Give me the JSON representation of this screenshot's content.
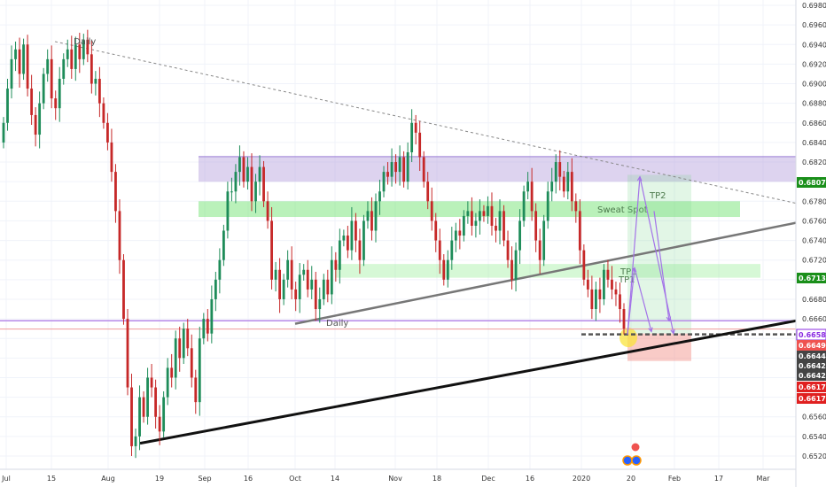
{
  "chart_data": {
    "type": "candlestick",
    "timeframe_label": "Daily",
    "lower_trend_label": "Daily",
    "y_ticks": [
      "0.69800",
      "0.69600",
      "0.69400",
      "0.69200",
      "0.69000",
      "0.68800",
      "0.68600",
      "0.68400",
      "0.68200",
      "0.68000",
      "0.67800",
      "0.67600",
      "0.67400",
      "0.67200",
      "0.67000",
      "0.66800",
      "0.66600",
      "0.66400",
      "0.66200",
      "0.66000",
      "0.65800",
      "0.65600",
      "0.65400",
      "0.65200"
    ],
    "ylim": [
      0.6519,
      0.6985
    ],
    "x_ticks": [
      "Jul",
      "15",
      "Aug",
      "19",
      "Sep",
      "16",
      "Oct",
      "14",
      "Nov",
      "18",
      "Dec",
      "16",
      "2020",
      "20",
      "Feb",
      "17",
      "Mar"
    ],
    "price_tags": [
      {
        "value": "0.68073",
        "bg": "#1a8f1a",
        "fg": "#ffffff"
      },
      {
        "value": "0.67138",
        "bg": "#1a8f1a",
        "fg": "#ffffff"
      },
      {
        "value": "0.66580",
        "bg": "#ffffff",
        "fg": "#8a2be2",
        "border": "#8a2be2"
      },
      {
        "value": "0.66496",
        "bg": "#ef5350",
        "fg": "#ffffff"
      },
      {
        "value": "0.66442",
        "bg": "#444444",
        "fg": "#ffffff"
      },
      {
        "value": "0.66422",
        "bg": "#444444",
        "fg": "#ffffff"
      },
      {
        "value": "0.66422",
        "bg": "#444444",
        "fg": "#ffffff"
      },
      {
        "value": "0.66172",
        "bg": "#e02020",
        "fg": "#ffffff"
      },
      {
        "value": "0.66172",
        "bg": "#e02020",
        "fg": "#ffffff"
      }
    ],
    "zones": [
      {
        "name": "supply",
        "label": "",
        "from": 0.68,
        "to": 0.6826,
        "color": "#b39ddb"
      },
      {
        "name": "sweat-spot",
        "label": "Sweat Spot",
        "from": 0.6764,
        "to": 0.678,
        "color": "#66e066"
      },
      {
        "name": "tp1",
        "label": "TP1",
        "from": 0.6702,
        "to": 0.6716,
        "color": "#a5f0a5"
      }
    ],
    "target_labels": [
      "TP1",
      "TP2"
    ],
    "colors": {
      "up": "#26a69a",
      "down": "#ef5350",
      "up_body": "#1e8c59",
      "down_body": "#c62828"
    }
  }
}
